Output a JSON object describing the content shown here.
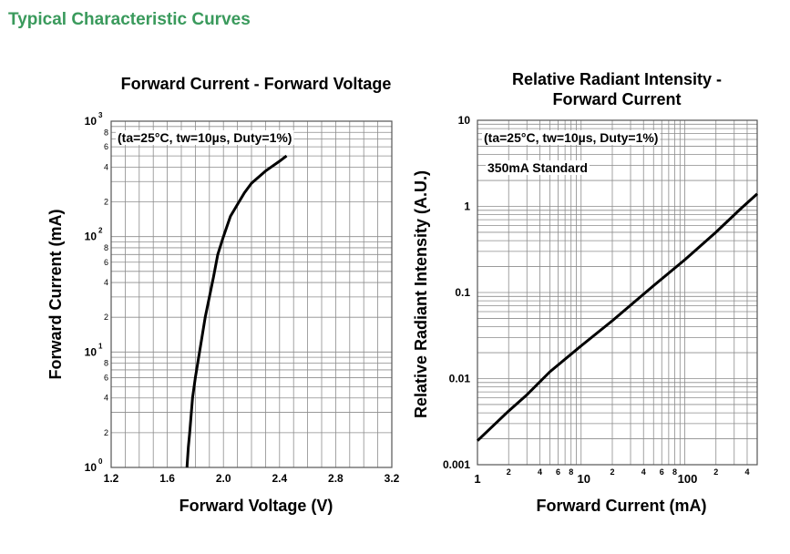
{
  "page": {
    "section_title": "Typical Characteristic Curves"
  },
  "chart_data": [
    {
      "id": "left",
      "type": "line",
      "title": "Forward Current - Forward Voltage",
      "xlabel": "Forward Voltage (V)",
      "ylabel": "Forward Current (mA)",
      "annotation": "(ta=25°C, tw=10µs, Duty=1%)",
      "x_scale": "linear",
      "y_scale": "log",
      "xlim": [
        1.2,
        3.2
      ],
      "ylim": [
        1,
        1000
      ],
      "grid": true,
      "x_ticks": [
        {
          "v": 1.2,
          "label": "1.2"
        },
        {
          "v": 1.6,
          "label": "1.6"
        },
        {
          "v": 2.0,
          "label": "2.0"
        },
        {
          "v": 2.4,
          "label": "2.4"
        },
        {
          "v": 2.8,
          "label": "2.8"
        },
        {
          "v": 3.2,
          "label": "3.2"
        }
      ],
      "y_major_ticks": [
        {
          "v": 1,
          "base": "10",
          "exp": "0"
        },
        {
          "v": 10,
          "base": "10",
          "exp": "1"
        },
        {
          "v": 100,
          "base": "10",
          "exp": "2"
        },
        {
          "v": 1000,
          "base": "10",
          "exp": "3"
        }
      ],
      "y_minor_labels": [
        {
          "v": 2,
          "label": "2"
        },
        {
          "v": 4,
          "label": "4"
        },
        {
          "v": 6,
          "label": "6"
        },
        {
          "v": 8,
          "label": "8"
        },
        {
          "v": 20,
          "label": "2"
        },
        {
          "v": 40,
          "label": "4"
        },
        {
          "v": 60,
          "label": "6"
        },
        {
          "v": 80,
          "label": "8"
        },
        {
          "v": 200,
          "label": "2"
        },
        {
          "v": 400,
          "label": "4"
        },
        {
          "v": 600,
          "label": "6"
        },
        {
          "v": 800,
          "label": "8"
        }
      ],
      "series": [
        {
          "points": [
            [
              1.74,
              1
            ],
            [
              1.75,
              1.5
            ],
            [
              1.76,
              2
            ],
            [
              1.78,
              4
            ],
            [
              1.8,
              6
            ],
            [
              1.83,
              10
            ],
            [
              1.87,
              20
            ],
            [
              1.9,
              30
            ],
            [
              1.93,
              45
            ],
            [
              1.96,
              70
            ],
            [
              2.0,
              100
            ],
            [
              2.05,
              150
            ],
            [
              2.1,
              190
            ],
            [
              2.15,
              240
            ],
            [
              2.2,
              290
            ],
            [
              2.3,
              370
            ],
            [
              2.4,
              450
            ],
            [
              2.45,
              500
            ]
          ]
        }
      ]
    },
    {
      "id": "right",
      "type": "line",
      "title_lines": [
        "Relative Radiant Intensity -",
        "Forward Current"
      ],
      "xlabel": "Forward Current (mA)",
      "ylabel": "Relative Radiant Intensity (A.U.)",
      "annotation": "(ta=25°C, tw=10µs, Duty=1%)",
      "annotation2": "350mA Standard",
      "x_scale": "log",
      "y_scale": "log",
      "xlim": [
        1,
        500
      ],
      "ylim": [
        0.001,
        10
      ],
      "grid": true,
      "x_major_ticks": [
        {
          "v": 1,
          "label": "1"
        },
        {
          "v": 10,
          "label": "10"
        },
        {
          "v": 100,
          "label": "100"
        }
      ],
      "x_minor_labels": [
        {
          "v": 2,
          "label": "2"
        },
        {
          "v": 4,
          "label": "4"
        },
        {
          "v": 6,
          "label": "6"
        },
        {
          "v": 8,
          "label": "8"
        },
        {
          "v": 20,
          "label": "2"
        },
        {
          "v": 40,
          "label": "4"
        },
        {
          "v": 60,
          "label": "6"
        },
        {
          "v": 80,
          "label": "8"
        },
        {
          "v": 200,
          "label": "2"
        },
        {
          "v": 400,
          "label": "4"
        }
      ],
      "y_major_ticks": [
        {
          "v": 0.001,
          "label": "0.001"
        },
        {
          "v": 0.01,
          "label": "0.01"
        },
        {
          "v": 0.1,
          "label": "0.1"
        },
        {
          "v": 1,
          "label": "1"
        },
        {
          "v": 10,
          "label": "10"
        }
      ],
      "series": [
        {
          "points": [
            [
              1,
              0.0019
            ],
            [
              2,
              0.0042
            ],
            [
              3,
              0.0065
            ],
            [
              5,
              0.012
            ],
            [
              10,
              0.024
            ],
            [
              20,
              0.047
            ],
            [
              50,
              0.12
            ],
            [
              100,
              0.24
            ],
            [
              200,
              0.5
            ],
            [
              350,
              0.95
            ],
            [
              500,
              1.4
            ]
          ]
        }
      ]
    }
  ]
}
